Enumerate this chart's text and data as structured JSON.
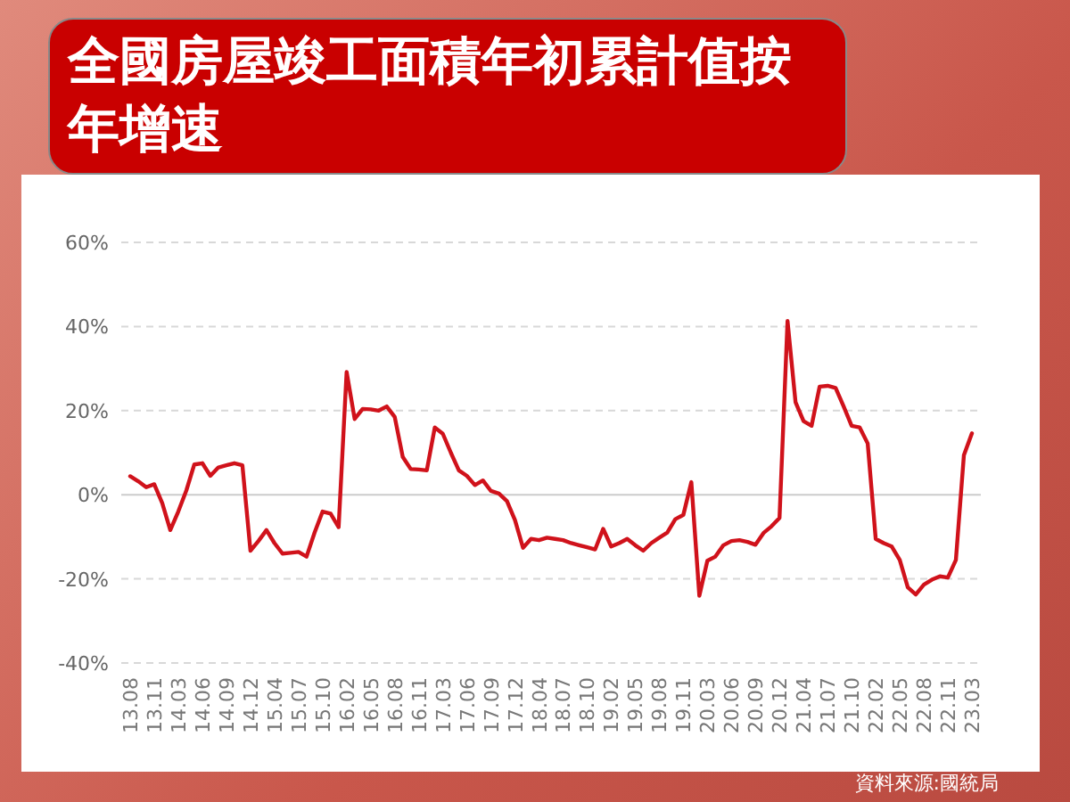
{
  "chart_data": {
    "type": "line",
    "title": "全國房屋竣工面積年初累計值按年增速",
    "categories": [
      "13.08",
      null,
      null,
      "13.11",
      null,
      null,
      "14.03",
      null,
      null,
      "14.06",
      null,
      null,
      "14.09",
      null,
      null,
      "14.12",
      null,
      null,
      "15.04",
      null,
      null,
      "15.07",
      null,
      null,
      "15.10",
      null,
      null,
      "16.02",
      null,
      null,
      "16.05",
      null,
      null,
      "16.08",
      null,
      null,
      "16.11",
      null,
      null,
      "17.03",
      null,
      null,
      "17.06",
      null,
      null,
      "17.09",
      null,
      null,
      "17.12",
      null,
      null,
      "18.04",
      null,
      null,
      "18.07",
      null,
      null,
      "18.10",
      null,
      null,
      "19.02",
      null,
      null,
      "19.05",
      null,
      null,
      "19.08",
      null,
      null,
      "19.11",
      null,
      null,
      "20.03",
      null,
      null,
      "20.06",
      null,
      null,
      "20.09",
      null,
      null,
      "20.12",
      null,
      null,
      "21.04",
      null,
      null,
      "21.07",
      null,
      null,
      "21.10",
      null,
      null,
      "22.02",
      null,
      null,
      "22.05",
      null,
      null,
      "22.08",
      null,
      null,
      "22.11",
      null,
      null,
      "23.03"
    ],
    "series": [
      {
        "color": "#d0121b",
        "values": [
          4.4,
          3.2,
          1.8,
          2.5,
          -2,
          -8.4,
          -4,
          1,
          7.2,
          7.5,
          4.5,
          6.5,
          7,
          7.5,
          7,
          -13.3,
          -11,
          -8.4,
          -11.5,
          -14,
          -13.8,
          -13.6,
          -14.7,
          -9,
          -4,
          -4.5,
          -7.7,
          29.2,
          18,
          20.4,
          20.3,
          20,
          21,
          18.5,
          9,
          6.1,
          6,
          5.8,
          16,
          14.5,
          10,
          5.8,
          4.5,
          2.3,
          3.4,
          0.9,
          0.3,
          -1.5,
          -6,
          -12.6,
          -10.5,
          -10.8,
          -10.2,
          -10.5,
          -10.8,
          -11.5,
          -12,
          -12.5,
          -13,
          -8.1,
          -12.3,
          -11.5,
          -10.5,
          -12,
          -13.3,
          -11.5,
          -10.2,
          -9,
          -5.8,
          -4.8,
          3,
          -24,
          -15.7,
          -14.7,
          -12,
          -11,
          -10.8,
          -11.2,
          -11.9,
          -9.1,
          -7.5,
          -5.5,
          41.3,
          22,
          17.5,
          16.4,
          25.7,
          25.9,
          25.4,
          21,
          16.4,
          16,
          12.2,
          -10.5,
          -11.5,
          -12.3,
          -15.5,
          -22,
          -23.7,
          -21.4,
          -20.2,
          -19.4,
          -19.7,
          -15.5,
          9.4,
          14.6
        ]
      }
    ],
    "ylim": [
      -40,
      60
    ],
    "yticks": [
      {
        "value": -40,
        "label": "-40%"
      },
      {
        "value": -20,
        "label": "-20%"
      },
      {
        "value": 0,
        "label": "0%"
      },
      {
        "value": 20,
        "label": "20%"
      },
      {
        "value": 40,
        "label": "40%"
      },
      {
        "value": 60,
        "label": "60%"
      }
    ],
    "grid": "y",
    "annotations": [
      "資料來源:國統局"
    ]
  }
}
